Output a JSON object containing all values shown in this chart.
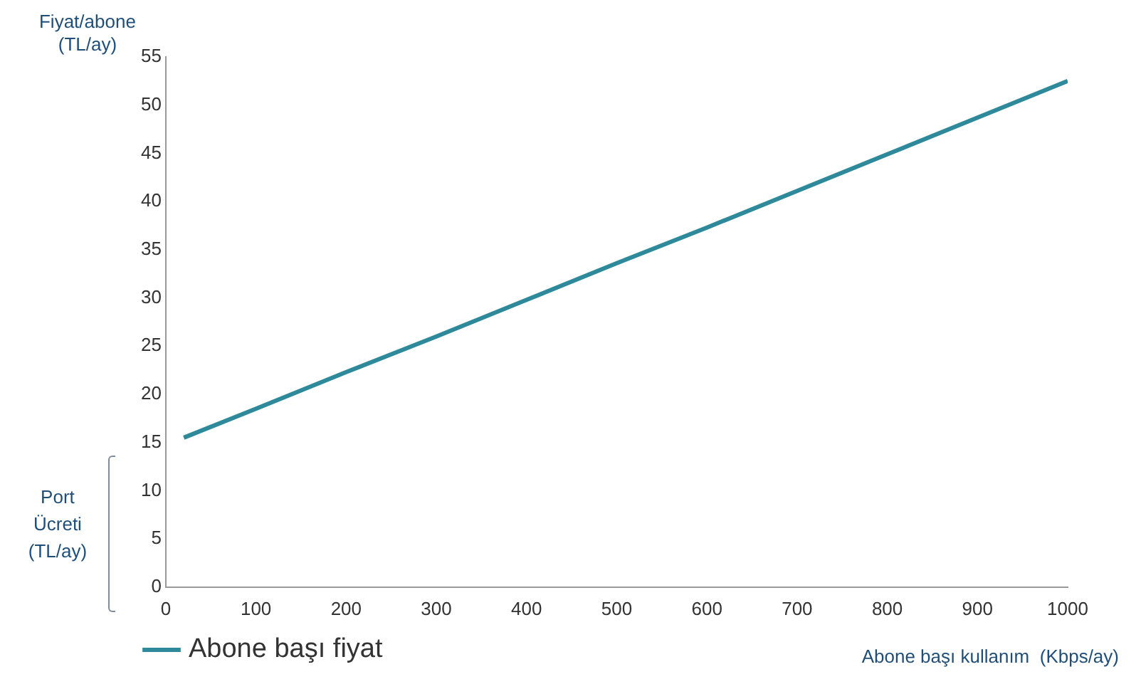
{
  "chart_data": {
    "type": "line",
    "ylabel": "Fiyat/abone (TL/ay)",
    "xlabel": "Abone başı kullanım  (Kbps/ay)",
    "x": [
      20,
      100,
      200,
      300,
      400,
      500,
      600,
      700,
      800,
      900,
      1000
    ],
    "series": [
      {
        "name": "Abone başı fiyat",
        "color": "#2e8a9a",
        "values": [
          15.5,
          18.5,
          22.3,
          26,
          29.8,
          33.6,
          37.3,
          41.1,
          44.9,
          48.7,
          52.5
        ]
      }
    ],
    "xlim": [
      0,
      1000
    ],
    "xticks": [
      0,
      100,
      200,
      300,
      400,
      500,
      600,
      700,
      800,
      900,
      1000
    ],
    "ylim": [
      0,
      55
    ],
    "yticks": [
      0,
      5,
      10,
      15,
      20,
      25,
      30,
      35,
      40,
      45,
      50,
      55
    ],
    "annotations": [
      "Port Ücreti (TL/ay)"
    ],
    "grid": false,
    "legend": "bottom left",
    "marker": "none",
    "line_style": "solid"
  }
}
